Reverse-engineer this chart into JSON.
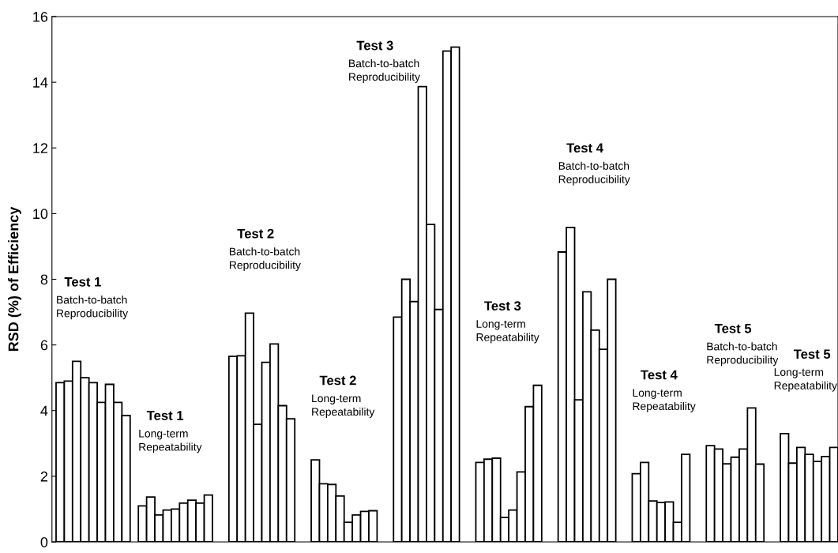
{
  "chart_data": {
    "type": "bar",
    "ylabel": "RSD (%) of Efficiency",
    "ylim": [
      0,
      16
    ],
    "yticks": [
      0,
      2,
      4,
      6,
      8,
      10,
      12,
      14,
      16
    ],
    "tick_labels": "y",
    "grid": false,
    "categories": [
      null,
      null,
      null,
      null,
      null,
      null,
      null,
      null,
      null,
      null,
      null,
      null,
      null,
      null,
      null,
      null,
      null,
      null,
      null,
      null,
      null,
      null,
      null,
      null,
      null,
      null,
      null,
      null,
      null,
      null,
      null,
      null,
      null,
      null,
      null,
      null,
      null,
      null,
      null,
      null,
      null,
      null,
      null,
      null,
      null,
      null,
      null,
      null,
      null,
      null,
      null,
      null,
      null,
      null,
      null,
      null,
      null,
      null,
      null,
      null,
      null,
      null,
      null,
      null,
      null,
      null,
      null,
      null,
      null,
      null,
      null,
      null,
      null,
      null,
      null,
      null,
      null,
      null,
      null,
      null,
      null,
      null,
      null,
      null,
      null,
      null,
      null,
      null,
      null,
      null,
      null,
      null,
      null,
      null,
      null
    ],
    "series": [
      {
        "color": "#ffffff",
        "values": [
          4.85,
          4.9,
          5.5,
          5.0,
          4.85,
          4.25,
          4.8,
          4.25,
          3.85,
          null,
          1.1,
          1.37,
          0.82,
          0.97,
          1.0,
          1.18,
          1.27,
          1.18,
          1.43,
          null,
          null,
          5.65,
          5.67,
          6.97,
          3.58,
          5.47,
          6.03,
          4.15,
          3.75,
          null,
          null,
          2.5,
          1.77,
          1.75,
          1.4,
          0.6,
          0.82,
          0.93,
          0.95,
          null,
          null,
          6.85,
          8.0,
          7.32,
          13.87,
          9.67,
          7.08,
          14.95,
          15.07,
          null,
          null,
          2.42,
          2.52,
          2.55,
          0.75,
          0.97,
          2.13,
          4.12,
          4.77,
          null,
          null,
          8.83,
          9.58,
          4.33,
          7.62,
          6.45,
          5.87,
          8.0,
          null,
          null,
          2.08,
          2.42,
          1.25,
          1.2,
          1.22,
          0.6,
          2.67,
          null,
          null,
          2.93,
          2.83,
          2.38,
          2.58,
          2.83,
          4.08,
          2.37,
          null,
          null,
          3.3,
          2.4,
          2.88,
          2.67,
          2.45,
          2.6,
          2.88
        ]
      }
    ],
    "annotations": [
      "Test 1",
      "Batch-to-batch\nReproducibility",
      "Test 1",
      "Long-term\nRepeatability",
      "Test 2",
      "Batch-to-batch\nReproducibility",
      "Test 2",
      "Long-term\nRepeatability",
      "Test 3",
      "Batch-to-batch\nReproducibility",
      "Test 3",
      "Long-term\nRepeatability",
      "Test 4",
      "Batch-to-batch\nReproducibility",
      "Test 4",
      "Long-term\nRepeatability",
      "Test 5",
      "Batch-to-batch\nReproducibility",
      "Test 5",
      "Long-term\nRepeatability"
    ]
  }
}
